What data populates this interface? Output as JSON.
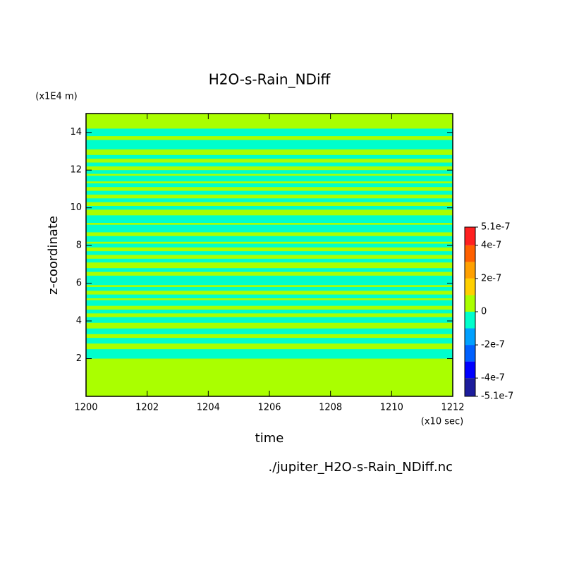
{
  "chart_data": {
    "type": "contour",
    "title": "H2O-s-Rain_NDiff",
    "xlabel": "time",
    "xunit": "(x10 sec)",
    "ylabel": "z-coordinate",
    "yunit": "(x1E4 m)",
    "footer": "./jupiter_H2O-s-Rain_NDiff.nc",
    "xlim": [
      1200,
      1212
    ],
    "xticks": [
      1200,
      1202,
      1204,
      1206,
      1208,
      1210,
      1212
    ],
    "ylim": [
      0,
      15
    ],
    "yticks": [
      2,
      4,
      6,
      8,
      10,
      12,
      14
    ],
    "background_value": 5e-08,
    "regions": [
      {
        "z": [
          13.8,
          14.2
        ],
        "value": -5e-08
      },
      {
        "z": [
          13.1,
          13.6
        ],
        "value": -5e-08
      },
      {
        "z": [
          12.6,
          12.8
        ],
        "value": -5e-08
      },
      {
        "z": [
          12.2,
          12.4
        ],
        "value": -5e-08
      },
      {
        "z": [
          11.8,
          12.0
        ],
        "value": -5e-08
      },
      {
        "z": [
          11.4,
          11.7
        ],
        "value": -5e-08
      },
      {
        "z": [
          11.1,
          11.3
        ],
        "value": -5e-08
      },
      {
        "z": [
          10.7,
          10.9
        ],
        "value": -5e-08
      },
      {
        "z": [
          10.3,
          10.5
        ],
        "value": -5e-08
      },
      {
        "z": [
          9.9,
          10.1
        ],
        "value": -5e-08
      },
      {
        "z": [
          9.2,
          9.6
        ],
        "value": -5e-08
      },
      {
        "z": [
          8.7,
          9.1
        ],
        "value": -5e-08
      },
      {
        "z": [
          8.2,
          8.5
        ],
        "value": -5e-08
      },
      {
        "z": [
          7.9,
          8.1
        ],
        "value": -5e-08
      },
      {
        "z": [
          7.5,
          7.7
        ],
        "value": -5e-08
      },
      {
        "z": [
          7.1,
          7.3
        ],
        "value": -5e-08
      },
      {
        "z": [
          6.6,
          6.8
        ],
        "value": -5e-08
      },
      {
        "z": [
          5.9,
          6.4
        ],
        "value": -5e-08
      },
      {
        "z": [
          5.6,
          5.8
        ],
        "value": -5e-08
      },
      {
        "z": [
          5.2,
          5.4
        ],
        "value": -5e-08
      },
      {
        "z": [
          4.8,
          5.1
        ],
        "value": -5e-08
      },
      {
        "z": [
          4.4,
          4.6
        ],
        "value": -5e-08
      },
      {
        "z": [
          3.9,
          4.2
        ],
        "value": -5e-08
      },
      {
        "z": [
          3.3,
          3.6
        ],
        "value": -5e-08
      },
      {
        "z": [
          2.8,
          3.1
        ],
        "value": -5e-08
      },
      {
        "z": [
          2.0,
          2.5
        ],
        "value": -5e-08
      }
    ],
    "levels": [
      -5.1e-07,
      -4e-07,
      -3e-07,
      -2e-07,
      -1e-07,
      0,
      1e-07,
      2e-07,
      3e-07,
      4e-07,
      5.1e-07
    ],
    "colors": [
      "#1c1c9c",
      "#0000ff",
      "#0060ff",
      "#00a0ff",
      "#00ffcc",
      "#aaff00",
      "#ffd000",
      "#ffa000",
      "#ff6000",
      "#ff2020"
    ],
    "cticks": [
      {
        "value": 5.1e-07,
        "label": "5.1e-7"
      },
      {
        "value": 4e-07,
        "label": "4e-7"
      },
      {
        "value": 2e-07,
        "label": "2e-7"
      },
      {
        "value": 0,
        "label": "0"
      },
      {
        "value": -2e-07,
        "label": "-2e-7"
      },
      {
        "value": -4e-07,
        "label": "-4e-7"
      },
      {
        "value": -5.1e-07,
        "label": "-5.1e-7"
      }
    ]
  }
}
